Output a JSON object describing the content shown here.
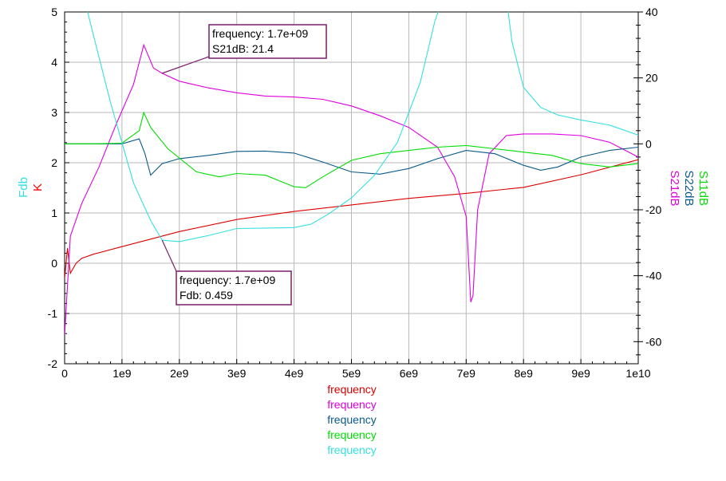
{
  "chart_data": {
    "type": "line",
    "x_ticks": [
      "0",
      "1e9",
      "2e9",
      "3e9",
      "4e9",
      "5e9",
      "6e9",
      "7e9",
      "8e9",
      "9e9",
      "1e10"
    ],
    "left_axis": {
      "ylim": [
        -2,
        5
      ],
      "ticks": [
        "-2",
        "-1",
        "0",
        "1",
        "2",
        "3",
        "4",
        "5"
      ]
    },
    "right_axis": {
      "ylim": [
        -66.7,
        40
      ],
      "ticks": [
        "-60",
        "-40",
        "-20",
        "0",
        "20",
        "40"
      ]
    },
    "left_labels": [
      {
        "text": "Fdb",
        "color": "#33e0e0"
      },
      {
        "text": "K",
        "color": "#ff0000"
      }
    ],
    "right_labels": [
      {
        "text": "S11dB",
        "color": "#00dd00"
      },
      {
        "text": "S22dB",
        "color": "#0a5a8a"
      },
      {
        "text": "S21dB",
        "color": "#e000e0"
      }
    ],
    "legend": [
      {
        "text": "frequency",
        "color": "#dd0000"
      },
      {
        "text": "frequency",
        "color": "#e000e0"
      },
      {
        "text": "frequency",
        "color": "#0a5a8a"
      },
      {
        "text": "frequency",
        "color": "#00dd00"
      },
      {
        "text": "frequency",
        "color": "#33e0e0"
      }
    ],
    "annotations": [
      {
        "line1": "frequency: 1.7e+09",
        "line2": "S21dB: 21.4"
      },
      {
        "line1": "frequency: 1.7e+09",
        "line2": "Fdb: 0.459"
      }
    ],
    "series": [
      {
        "color": "#dd0000",
        "axis": "left",
        "x": [
          0.0,
          0.05,
          0.1,
          0.2,
          0.3,
          0.5,
          1.0,
          2.0,
          3.0,
          4.0,
          5.0,
          6.0,
          7.0,
          8.0,
          9.0,
          10.0
        ],
        "y": [
          -0.3,
          0.3,
          -0.2,
          0.0,
          0.1,
          0.18,
          0.33,
          0.63,
          0.87,
          1.03,
          1.16,
          1.29,
          1.39,
          1.51,
          1.76,
          2.06
        ]
      },
      {
        "color": "#e000e0",
        "axis": "right",
        "x": [
          0.0,
          0.1,
          0.3,
          0.6,
          0.9,
          1.2,
          1.38,
          1.55,
          1.7,
          2.0,
          2.5,
          3.0,
          3.5,
          4.0,
          4.5,
          5.0,
          5.5,
          6.0,
          6.5,
          6.8,
          7.0,
          7.08,
          7.12,
          7.2,
          7.4,
          7.7,
          8.0,
          8.5,
          9.0,
          9.5,
          10.0
        ],
        "y": [
          -58,
          -28,
          -18,
          -7,
          6,
          18,
          30,
          23,
          21.4,
          19,
          17,
          15.5,
          14.5,
          14.2,
          13.5,
          11.5,
          8.5,
          5,
          -1,
          -10,
          -22,
          -48,
          -46,
          -20,
          -3,
          2.5,
          3,
          3,
          2.5,
          0.5,
          -4
        ]
      },
      {
        "color": "#0a5a8a",
        "axis": "right",
        "x": [
          0.0,
          0.5,
          1.0,
          1.3,
          1.4,
          1.5,
          1.7,
          2.0,
          2.5,
          3.0,
          3.5,
          4.0,
          4.5,
          5.0,
          5.5,
          6.0,
          6.5,
          7.0,
          7.5,
          8.0,
          8.3,
          8.6,
          9.0,
          9.5,
          10.0
        ],
        "y": [
          0,
          0,
          0,
          1.5,
          -3,
          -9.5,
          -6,
          -4.5,
          -3.5,
          -2.3,
          -2.2,
          -2.8,
          -5.5,
          -8.5,
          -9.2,
          -7.5,
          -4.5,
          -2.0,
          -3,
          -6.5,
          -8,
          -7,
          -4,
          -2,
          -1
        ]
      },
      {
        "color": "#00dd00",
        "axis": "right",
        "x": [
          0.0,
          0.5,
          1.0,
          1.3,
          1.38,
          1.5,
          1.8,
          2.3,
          2.7,
          3.0,
          3.5,
          4.0,
          4.2,
          4.5,
          5.0,
          5.5,
          6.0,
          6.5,
          7.0,
          7.5,
          8.0,
          8.5,
          9.0,
          9.5,
          10.0
        ],
        "y": [
          0,
          0,
          0.2,
          4,
          9.5,
          5,
          -1.5,
          -8.5,
          -10,
          -9,
          -9.5,
          -13,
          -13.3,
          -10,
          -5,
          -3,
          -2,
          -1,
          -0.5,
          -1.5,
          -2.5,
          -3.5,
          -6,
          -7,
          -6
        ]
      },
      {
        "color": "#33e0e0",
        "axis": "left",
        "x": [
          0.4,
          0.6,
          0.8,
          1.0,
          1.2,
          1.5,
          1.7,
          2.0,
          2.5,
          3.0,
          3.5,
          4.0,
          4.3,
          4.6,
          5.0,
          5.4,
          5.8,
          6.2,
          6.45,
          6.6,
          7.7,
          7.8,
          8.0,
          8.3,
          8.6,
          9.0,
          9.5,
          10.0
        ],
        "y": [
          5.0,
          4.1,
          3.2,
          2.4,
          1.6,
          0.85,
          0.459,
          0.43,
          0.55,
          0.69,
          0.7,
          0.71,
          0.78,
          0.98,
          1.3,
          1.75,
          2.4,
          3.6,
          4.8,
          5.3,
          5.3,
          4.4,
          3.5,
          3.1,
          2.95,
          2.85,
          2.75,
          2.55
        ]
      }
    ]
  }
}
